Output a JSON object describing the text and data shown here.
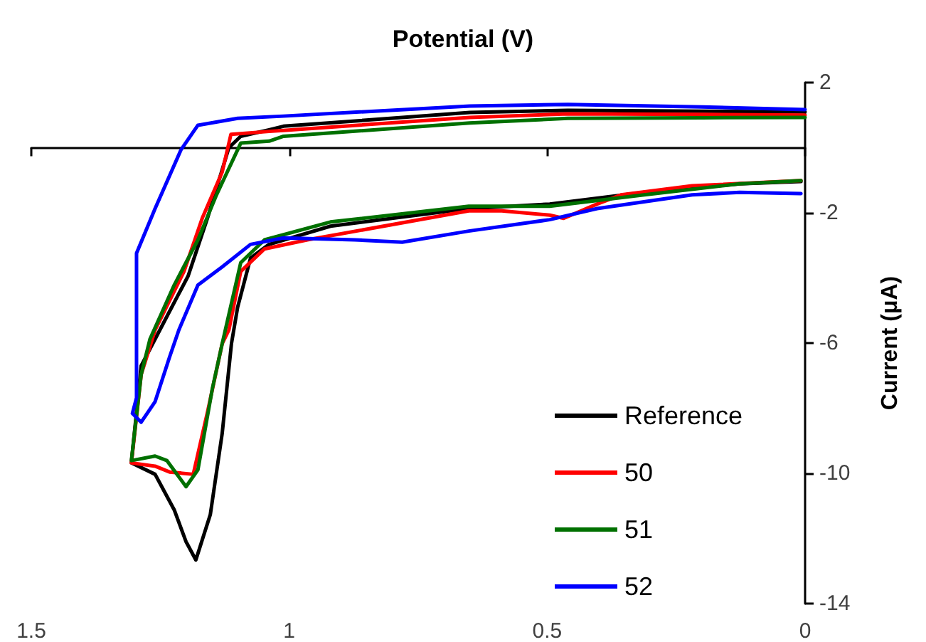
{
  "chart_data": {
    "type": "line",
    "title": "Potential (V)",
    "ylabel": "Current (μA)",
    "xlim": [
      1.5,
      0
    ],
    "xticks": [
      1.5,
      1,
      0.5,
      0
    ],
    "ylim": [
      -14,
      2
    ],
    "yticks": [
      -14,
      -10,
      -6,
      -2,
      2
    ],
    "legend": "bottom right",
    "marker": "none",
    "series": [
      {
        "name": "Reference",
        "color": "#000000",
        "x": [
          0,
          0.2,
          0.46,
          0.65,
          1.011,
          1.039,
          1.094,
          1.117,
          1.158,
          1.196,
          1.241,
          1.287,
          1.306,
          1.26,
          1.223,
          1.2,
          1.181,
          1.153,
          1.13,
          1.112,
          1.1,
          1.075,
          1.039,
          0.92,
          0.652,
          0.495,
          0.312,
          0.127,
          0.008
        ],
        "values": [
          1.1,
          1.12,
          1.15,
          1.08,
          0.66,
          0.55,
          0.35,
          0,
          -2.14,
          -3.94,
          -5.3,
          -6.7,
          -9.68,
          -10.03,
          -11.12,
          -12.1,
          -12.66,
          -11.27,
          -8.78,
          -6.02,
          -4.9,
          -3.39,
          -2.97,
          -2.41,
          -1.87,
          -1.73,
          -1.37,
          -1.11,
          -1.04
        ]
      },
      {
        "name": "50",
        "color": "#ff0000",
        "x": [
          0,
          0.2,
          0.46,
          0.65,
          1.011,
          1.039,
          1.113,
          1.13,
          1.168,
          1.204,
          1.26,
          1.287,
          1.306,
          1.26,
          1.232,
          1.186,
          1.158,
          1.13,
          1.117,
          1.094,
          1.048,
          0.965,
          0.652,
          0.588,
          0.495,
          0.468,
          0.403,
          0.357,
          0.219,
          0.008
        ],
        "values": [
          1.0,
          1.02,
          1.04,
          0.93,
          0.53,
          0.5,
          0.41,
          -0.75,
          -2.14,
          -3.8,
          -5.6,
          -6.97,
          -9.68,
          -9.78,
          -9.96,
          -10.03,
          -8.09,
          -6.02,
          -5.6,
          -3.8,
          -3.11,
          -2.83,
          -1.94,
          -1.94,
          -2.07,
          -2.17,
          -1.73,
          -1.45,
          -1.17,
          -1.01
        ]
      },
      {
        "name": "51",
        "color": "#007000",
        "x": [
          0,
          0.2,
          0.46,
          0.65,
          1.011,
          1.039,
          1.094,
          1.141,
          1.177,
          1.223,
          1.27,
          1.287,
          1.306,
          1.26,
          1.237,
          1.2,
          1.177,
          1.149,
          1.13,
          1.094,
          1.048,
          0.92,
          0.652,
          0.495,
          0.312,
          0.127,
          0.008
        ],
        "values": [
          0.93,
          0.92,
          0.9,
          0.76,
          0.35,
          0.2,
          0.14,
          -1.45,
          -2.83,
          -4.22,
          -5.88,
          -6.97,
          -9.61,
          -9.47,
          -9.61,
          -10.41,
          -9.89,
          -7.4,
          -6.02,
          -3.53,
          -2.83,
          -2.28,
          -1.8,
          -1.8,
          -1.45,
          -1.11,
          -1.01
        ]
      },
      {
        "name": "52",
        "color": "#0000ff",
        "x": [
          0,
          0.2,
          0.46,
          0.65,
          1.011,
          1.1,
          1.177,
          1.21,
          1.26,
          1.296,
          1.296,
          1.304,
          1.287,
          1.26,
          1.232,
          1.214,
          1.177,
          1.13,
          1.075,
          1.011,
          0.873,
          0.781,
          0.652,
          0.495,
          0.403,
          0.219,
          0.127,
          0.008
        ],
        "values": [
          1.17,
          1.25,
          1.33,
          1.28,
          0.97,
          0.9,
          0.69,
          -0.07,
          -1.87,
          -3.24,
          -7.68,
          -8.16,
          -8.43,
          -7.8,
          -6.43,
          -5.6,
          -4.22,
          -3.66,
          -2.97,
          -2.77,
          -2.83,
          -2.9,
          -2.56,
          -2.21,
          -1.87,
          -1.45,
          -1.37,
          -1.41
        ]
      }
    ]
  }
}
